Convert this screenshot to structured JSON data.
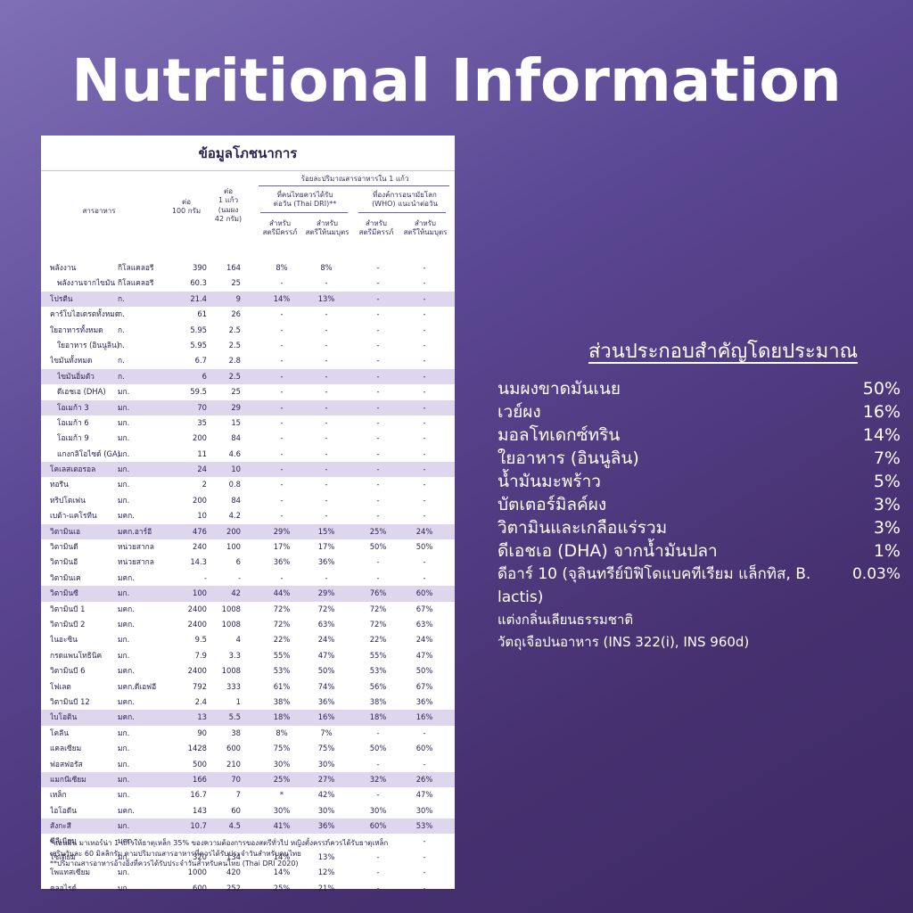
{
  "title": "Nutritional Information",
  "panel": {
    "header": "ข้อมูลโภชนาการ",
    "col_nutrient": "สารอาหาร",
    "col_per100": "ต่อ\n100 กรัม",
    "col_perglass": "ต่อ\n1 แก้ว\n(นมผง\n42 กรัม)",
    "col_percent": "ร้อยละปริมาณสารอาหารใน 1 แก้ว",
    "col_thai": "ที่คนไทยควรได้รับ\nต่อวัน (Thai DRI)**",
    "col_who": "ที่องค์การอนามัยโลก\n(WHO) แนะนำต่อวัน",
    "col_preg": "สำหรับ\nสตรีมีครรภ์",
    "col_lact": "สำหรับ\nสตรีให้นมบุตร",
    "rows": [
      {
        "n": "พลังงาน",
        "u": "กิโลแคลอรี",
        "a": "390",
        "b": "164",
        "p1": "8%",
        "p2": "8%",
        "p3": "-",
        "p4": "-",
        "s": 0,
        "i": 0
      },
      {
        "n": "พลังงานจากไขมัน",
        "u": "กิโลแคลอรี",
        "a": "60.3",
        "b": "25",
        "p1": "-",
        "p2": "-",
        "p3": "-",
        "p4": "-",
        "s": 0,
        "i": 1
      },
      {
        "n": "โปรตีน",
        "u": "ก.",
        "a": "21.4",
        "b": "9",
        "p1": "14%",
        "p2": "13%",
        "p3": "-",
        "p4": "-",
        "s": 1,
        "i": 0
      },
      {
        "n": "คาร์โบไฮเดรตทั้งหมด",
        "u": "ก.",
        "a": "61",
        "b": "26",
        "p1": "-",
        "p2": "-",
        "p3": "-",
        "p4": "-",
        "s": 0,
        "i": 0
      },
      {
        "n": "ใยอาหารทั้งหมด",
        "u": "ก.",
        "a": "5.95",
        "b": "2.5",
        "p1": "-",
        "p2": "-",
        "p3": "-",
        "p4": "-",
        "s": 0,
        "i": 0
      },
      {
        "n": "ใยอาหาร (อินนูลิน)",
        "u": "ก.",
        "a": "5.95",
        "b": "2.5",
        "p1": "-",
        "p2": "-",
        "p3": "-",
        "p4": "-",
        "s": 0,
        "i": 1
      },
      {
        "n": "ไขมันทั้งหมด",
        "u": "ก.",
        "a": "6.7",
        "b": "2.8",
        "p1": "-",
        "p2": "-",
        "p3": "-",
        "p4": "-",
        "s": 0,
        "i": 0
      },
      {
        "n": "ไขมันอิ่มตัว",
        "u": "ก.",
        "a": "6",
        "b": "2.5",
        "p1": "-",
        "p2": "-",
        "p3": "-",
        "p4": "-",
        "s": 1,
        "i": 1
      },
      {
        "n": "ดีเอชเอ (DHA)",
        "u": "มก.",
        "a": "59.5",
        "b": "25",
        "p1": "-",
        "p2": "-",
        "p3": "-",
        "p4": "-",
        "s": 0,
        "i": 1
      },
      {
        "n": "โอเมก้า 3",
        "u": "มก.",
        "a": "70",
        "b": "29",
        "p1": "-",
        "p2": "-",
        "p3": "-",
        "p4": "-",
        "s": 1,
        "i": 1
      },
      {
        "n": "โอเมก้า 6",
        "u": "มก.",
        "a": "35",
        "b": "15",
        "p1": "-",
        "p2": "-",
        "p3": "-",
        "p4": "-",
        "s": 0,
        "i": 1
      },
      {
        "n": "โอเมก้า 9",
        "u": "มก.",
        "a": "200",
        "b": "84",
        "p1": "-",
        "p2": "-",
        "p3": "-",
        "p4": "-",
        "s": 0,
        "i": 1
      },
      {
        "n": "แกงกลิโอไซด์ (GA)",
        "u": "มก.",
        "a": "11",
        "b": "4.6",
        "p1": "-",
        "p2": "-",
        "p3": "-",
        "p4": "-",
        "s": 0,
        "i": 1
      },
      {
        "n": "โคเลสเตอรอล",
        "u": "มก.",
        "a": "24",
        "b": "10",
        "p1": "-",
        "p2": "-",
        "p3": "-",
        "p4": "-",
        "s": 1,
        "i": 0
      },
      {
        "n": "ทอรีน",
        "u": "มก.",
        "a": "2",
        "b": "0.8",
        "p1": "-",
        "p2": "-",
        "p3": "-",
        "p4": "-",
        "s": 0,
        "i": 0
      },
      {
        "n": "ทริปโตเฟน",
        "u": "มก.",
        "a": "200",
        "b": "84",
        "p1": "-",
        "p2": "-",
        "p3": "-",
        "p4": "-",
        "s": 0,
        "i": 0
      },
      {
        "n": "เบต้า-แคโรทีน",
        "u": "มคก.",
        "a": "10",
        "b": "4.2",
        "p1": "-",
        "p2": "-",
        "p3": "-",
        "p4": "-",
        "s": 0,
        "i": 0
      },
      {
        "n": "วิตามินเอ",
        "u": "มคก.อาร์อี",
        "a": "476",
        "b": "200",
        "p1": "29%",
        "p2": "15%",
        "p3": "25%",
        "p4": "24%",
        "s": 1,
        "i": 0
      },
      {
        "n": "วิตามินดี",
        "u": "หน่วยสากล",
        "a": "240",
        "b": "100",
        "p1": "17%",
        "p2": "17%",
        "p3": "50%",
        "p4": "50%",
        "s": 0,
        "i": 0
      },
      {
        "n": "วิตามินอี",
        "u": "หน่วยสากล",
        "a": "14.3",
        "b": "6",
        "p1": "36%",
        "p2": "36%",
        "p3": "-",
        "p4": "-",
        "s": 0,
        "i": 0
      },
      {
        "n": "วิตามินเค",
        "u": "มคก.",
        "a": "-",
        "b": "-",
        "p1": "-",
        "p2": "-",
        "p3": "-",
        "p4": "-",
        "s": 0,
        "i": 0
      },
      {
        "n": "วิตามินซี",
        "u": "มก.",
        "a": "100",
        "b": "42",
        "p1": "44%",
        "p2": "29%",
        "p3": "76%",
        "p4": "60%",
        "s": 1,
        "i": 0
      },
      {
        "n": "วิตามินบี 1",
        "u": "มคก.",
        "a": "2400",
        "b": "1008",
        "p1": "72%",
        "p2": "72%",
        "p3": "72%",
        "p4": "67%",
        "s": 0,
        "i": 0
      },
      {
        "n": "วิตามินบี 2",
        "u": "มคก.",
        "a": "2400",
        "b": "1008",
        "p1": "72%",
        "p2": "63%",
        "p3": "72%",
        "p4": "63%",
        "s": 0,
        "i": 0
      },
      {
        "n": "ไนอะซิน",
        "u": "มก.",
        "a": "9.5",
        "b": "4",
        "p1": "22%",
        "p2": "24%",
        "p3": "22%",
        "p4": "24%",
        "s": 0,
        "i": 0
      },
      {
        "n": "กรดแพนโทธินิค",
        "u": "มก.",
        "a": "7.9",
        "b": "3.3",
        "p1": "55%",
        "p2": "47%",
        "p3": "55%",
        "p4": "47%",
        "s": 0,
        "i": 0
      },
      {
        "n": "วิตามินบี 6",
        "u": "มคก.",
        "a": "2400",
        "b": "1008",
        "p1": "53%",
        "p2": "50%",
        "p3": "53%",
        "p4": "50%",
        "s": 0,
        "i": 0
      },
      {
        "n": "โฟเลต",
        "u": "มคก.ดีเอฟอี",
        "a": "792",
        "b": "333",
        "p1": "61%",
        "p2": "74%",
        "p3": "56%",
        "p4": "67%",
        "s": 0,
        "i": 0
      },
      {
        "n": "วิตามินบี 12",
        "u": "มคก.",
        "a": "2.4",
        "b": "1",
        "p1": "38%",
        "p2": "36%",
        "p3": "38%",
        "p4": "36%",
        "s": 0,
        "i": 0
      },
      {
        "n": "ไบโอติน",
        "u": "มคก.",
        "a": "13",
        "b": "5.5",
        "p1": "18%",
        "p2": "16%",
        "p3": "18%",
        "p4": "16%",
        "s": 1,
        "i": 0
      },
      {
        "n": "โคลีน",
        "u": "มก.",
        "a": "90",
        "b": "38",
        "p1": "8%",
        "p2": "7%",
        "p3": "-",
        "p4": "-",
        "s": 0,
        "i": 0
      },
      {
        "n": "แคลเซียม",
        "u": "มก.",
        "a": "1428",
        "b": "600",
        "p1": "75%",
        "p2": "75%",
        "p3": "50%",
        "p4": "60%",
        "s": 0,
        "i": 0
      },
      {
        "n": "ฟอสฟอรัส",
        "u": "มก.",
        "a": "500",
        "b": "210",
        "p1": "30%",
        "p2": "30%",
        "p3": "-",
        "p4": "-",
        "s": 0,
        "i": 0
      },
      {
        "n": "แมกนีเซียม",
        "u": "มก.",
        "a": "166",
        "b": "70",
        "p1": "25%",
        "p2": "27%",
        "p3": "32%",
        "p4": "26%",
        "s": 1,
        "i": 0
      },
      {
        "n": "เหล็ก",
        "u": "มก.",
        "a": "16.7",
        "b": "7",
        "p1": "*",
        "p2": "42%",
        "p3": "-",
        "p4": "47%",
        "s": 0,
        "i": 0
      },
      {
        "n": "ไอโอดีน",
        "u": "มคก.",
        "a": "143",
        "b": "60",
        "p1": "30%",
        "p2": "30%",
        "p3": "30%",
        "p4": "30%",
        "s": 0,
        "i": 0
      },
      {
        "n": "สังกะสี",
        "u": "มก.",
        "a": "10.7",
        "b": "4.5",
        "p1": "41%",
        "p2": "36%",
        "p3": "60%",
        "p4": "53%",
        "s": 1,
        "i": 0
      },
      {
        "n": "ซีลีเนียม",
        "u": "มคก.",
        "a": "-",
        "b": "-",
        "p1": "-",
        "p2": "-",
        "p3": "-",
        "p4": "-",
        "s": 0,
        "i": 0
      },
      {
        "n": "โซเดียม",
        "u": "มก.",
        "a": "320",
        "b": "134",
        "p1": "14%",
        "p2": "13%",
        "p3": "-",
        "p4": "-",
        "s": 0,
        "i": 0
      },
      {
        "n": "โพแทสเซียม",
        "u": "มก.",
        "a": "1000",
        "b": "420",
        "p1": "14%",
        "p2": "12%",
        "p3": "-",
        "p4": "-",
        "s": 0,
        "i": 0
      },
      {
        "n": "คลอไรด์",
        "u": "มก.",
        "a": "600",
        "b": "252",
        "p1": "25%",
        "p2": "21%",
        "p3": "-",
        "p4": "-",
        "s": 0,
        "i": 0
      }
    ],
    "foot1": "*แอนมัน มาเทอร์น่า 1 แก้วให้ธาตุเหล็ก 35% ของความต้องการของสตรีทั่วไป หญิงตั้งครรภ์ควรได้รับธาตุเหล็ก",
    "foot2": "เสริมวันละ 60 มิลลิกรัม ตามปริมาณสารอาหารที่ควรได้รับประจำวันสำหรับคนไทย",
    "foot3": "**ปริมาณสารอาหารอ้างอิงที่ควรได้รับประจำวันสำหรับคนไทย (Thai DRI 2020)"
  },
  "ingredients": {
    "title": "ส่วนประกอบสำคัญโดยประมาณ",
    "items": [
      {
        "name": "นมผงขาดมันเนย",
        "pct": "50%"
      },
      {
        "name": "เวย์ผง",
        "pct": "16%"
      },
      {
        "name": "มอลโทเดกซ์ทริน",
        "pct": "14%"
      },
      {
        "name": "ใยอาหาร (อินนูลิน)",
        "pct": "7%"
      },
      {
        "name": "น้ำมันมะพร้าว",
        "pct": "5%"
      },
      {
        "name": "บัตเตอร์มิลค์ผง",
        "pct": "3%"
      },
      {
        "name": "วิตามินและเกลือแร่รวม",
        "pct": "3%"
      },
      {
        "name": "ดีเอชเอ (DHA) จากน้ำมันปลา",
        "pct": "1%"
      },
      {
        "name": "ดีอาร์ 10 (จุลินทรีย์บิฟิโดแบคทีเรียม แล็กทิส, B. lactis)",
        "pct": "0.03%"
      }
    ],
    "note1": "แต่งกลิ่นเลียนธรรมชาติ",
    "note2": "วัตถุเจือปนอาหาร (INS 322(i), INS 960d)"
  }
}
